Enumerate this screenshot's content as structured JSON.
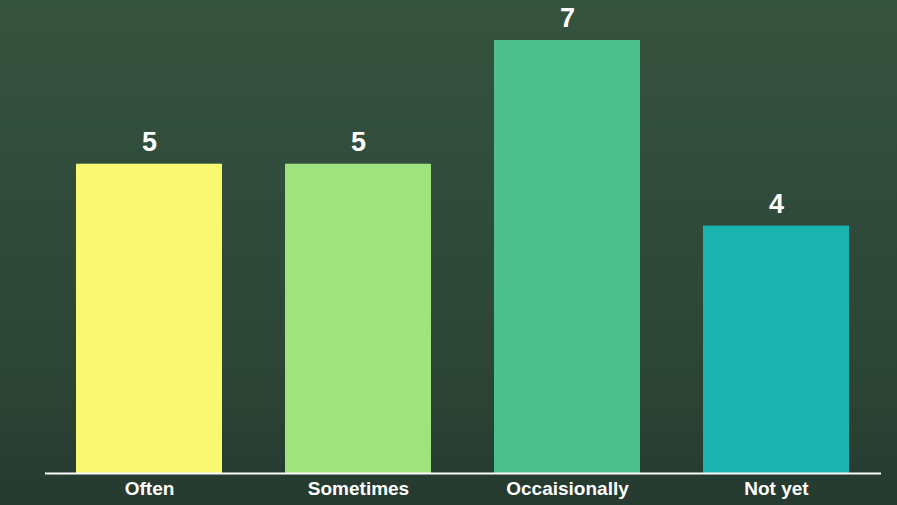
{
  "chart_data": {
    "type": "bar",
    "categories": [
      "Often",
      "Sometimes",
      "Occaisionally",
      "Not yet"
    ],
    "values": [
      5,
      5,
      7,
      4
    ],
    "colors": [
      "#f9f871",
      "#a0e27e",
      "#4bbf8d",
      "#1ab3b0"
    ],
    "ylim": [
      0,
      7
    ],
    "data_labels": true,
    "tick_labels": "x",
    "grid": false
  }
}
